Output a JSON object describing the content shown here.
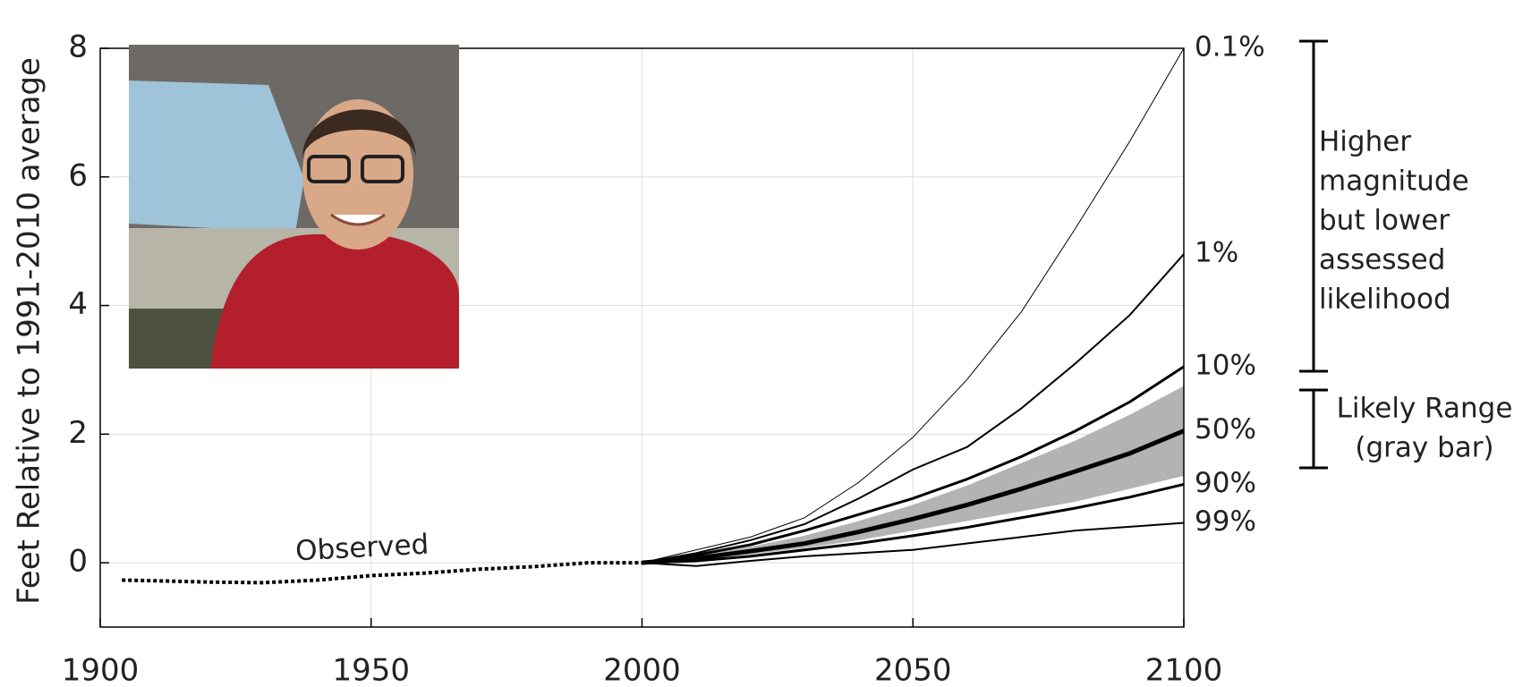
{
  "chart_data": {
    "type": "line",
    "ylabel": "Feet Relative to 1991-2010 average",
    "xlim": [
      1900,
      2100
    ],
    "xticks": [
      1900,
      1950,
      2000,
      2050,
      2100
    ],
    "ylim": [
      -1,
      8
    ],
    "yticks": [
      0,
      2,
      4,
      6,
      8
    ],
    "grid": true,
    "band": {
      "color": "#b3b3b3",
      "x": [
        2000,
        2010,
        2020,
        2030,
        2040,
        2050,
        2060,
        2070,
        2080,
        2090,
        2100
      ],
      "upper": [
        0,
        0.1,
        0.25,
        0.42,
        0.65,
        0.9,
        1.2,
        1.55,
        1.9,
        2.3,
        2.75
      ],
      "lower": [
        0,
        0.05,
        0.13,
        0.23,
        0.35,
        0.5,
        0.65,
        0.8,
        0.95,
        1.15,
        1.35
      ]
    },
    "series": [
      {
        "name": "Observed",
        "color": "#000000",
        "width": 4,
        "dash": "dotted",
        "x": [
          1904,
          1910,
          1920,
          1930,
          1940,
          1950,
          1960,
          1970,
          1980,
          1990,
          2000
        ],
        "values": [
          -0.27,
          -0.28,
          -0.3,
          -0.31,
          -0.27,
          -0.2,
          -0.16,
          -0.1,
          -0.06,
          0,
          0
        ]
      },
      {
        "name": "0.1%",
        "color": "#000000",
        "width": 1,
        "x": [
          2000,
          2010,
          2020,
          2030,
          2040,
          2050,
          2060,
          2070,
          2080,
          2090,
          2100
        ],
        "values": [
          0,
          0.2,
          0.4,
          0.7,
          1.25,
          1.95,
          2.85,
          3.9,
          5.2,
          6.55,
          8
        ]
      },
      {
        "name": "1%",
        "color": "#000000",
        "width": 2,
        "x": [
          2000,
          2010,
          2020,
          2030,
          2040,
          2050,
          2060,
          2070,
          2080,
          2090,
          2100
        ],
        "values": [
          0,
          0.15,
          0.35,
          0.6,
          1.0,
          1.45,
          1.8,
          2.4,
          3.1,
          3.85,
          4.8
        ]
      },
      {
        "name": "10%",
        "color": "#000000",
        "width": 3,
        "x": [
          2000,
          2010,
          2020,
          2030,
          2040,
          2050,
          2060,
          2070,
          2080,
          2090,
          2100
        ],
        "values": [
          0,
          0.12,
          0.28,
          0.5,
          0.75,
          1.0,
          1.3,
          1.65,
          2.05,
          2.5,
          3.05
        ]
      },
      {
        "name": "50%",
        "color": "#000000",
        "width": 5,
        "x": [
          2000,
          2010,
          2020,
          2030,
          2040,
          2050,
          2060,
          2070,
          2080,
          2090,
          2100
        ],
        "values": [
          0,
          0.07,
          0.18,
          0.3,
          0.48,
          0.68,
          0.9,
          1.15,
          1.42,
          1.7,
          2.05
        ]
      },
      {
        "name": "90%",
        "color": "#000000",
        "width": 3,
        "x": [
          2000,
          2010,
          2020,
          2030,
          2040,
          2050,
          2060,
          2070,
          2080,
          2090,
          2100
        ],
        "values": [
          0,
          0.03,
          0.1,
          0.2,
          0.3,
          0.42,
          0.55,
          0.7,
          0.85,
          1.02,
          1.22
        ]
      },
      {
        "name": "99%",
        "color": "#000000",
        "width": 2,
        "x": [
          2000,
          2010,
          2020,
          2030,
          2040,
          2050,
          2060,
          2070,
          2080,
          2090,
          2100
        ],
        "values": [
          0,
          -0.05,
          0.03,
          0.1,
          0.15,
          0.2,
          0.3,
          0.4,
          0.5,
          0.56,
          0.62
        ]
      }
    ],
    "annotations": {
      "higher": [
        "Higher",
        "magnitude",
        "but lower",
        "assessed",
        "likelihood"
      ],
      "likely": [
        "Likely Range",
        "(gray bar)"
      ]
    }
  }
}
